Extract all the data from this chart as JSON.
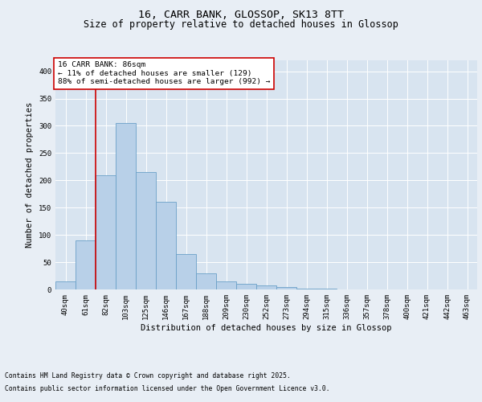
{
  "title_line1": "16, CARR BANK, GLOSSOP, SK13 8TT",
  "title_line2": "Size of property relative to detached houses in Glossop",
  "xlabel": "Distribution of detached houses by size in Glossop",
  "ylabel": "Number of detached properties",
  "categories": [
    "40sqm",
    "61sqm",
    "82sqm",
    "103sqm",
    "125sqm",
    "146sqm",
    "167sqm",
    "188sqm",
    "209sqm",
    "230sqm",
    "252sqm",
    "273sqm",
    "294sqm",
    "315sqm",
    "336sqm",
    "357sqm",
    "378sqm",
    "400sqm",
    "421sqm",
    "442sqm",
    "463sqm"
  ],
  "values": [
    15,
    90,
    210,
    305,
    215,
    160,
    65,
    30,
    15,
    10,
    7,
    5,
    2,
    1,
    0,
    0,
    0,
    0,
    0,
    0,
    0
  ],
  "bar_color": "#b8d0e8",
  "bar_edge_color": "#6aa0c8",
  "vline_x_index": 2,
  "vline_color": "#cc0000",
  "annotation_text": "16 CARR BANK: 86sqm\n← 11% of detached houses are smaller (129)\n88% of semi-detached houses are larger (992) →",
  "annotation_box_facecolor": "#ffffff",
  "annotation_box_edgecolor": "#cc0000",
  "bg_color": "#e8eef5",
  "plot_bg_color": "#d8e4f0",
  "footer_line1": "Contains HM Land Registry data © Crown copyright and database right 2025.",
  "footer_line2": "Contains public sector information licensed under the Open Government Licence v3.0.",
  "ylim": [
    0,
    420
  ],
  "yticks": [
    0,
    50,
    100,
    150,
    200,
    250,
    300,
    350,
    400
  ],
  "grid_color": "#ffffff",
  "title_fontsize": 9.5,
  "subtitle_fontsize": 8.5,
  "axis_label_fontsize": 7.5,
  "tick_fontsize": 6.5,
  "annotation_fontsize": 6.8,
  "footer_fontsize": 5.8
}
